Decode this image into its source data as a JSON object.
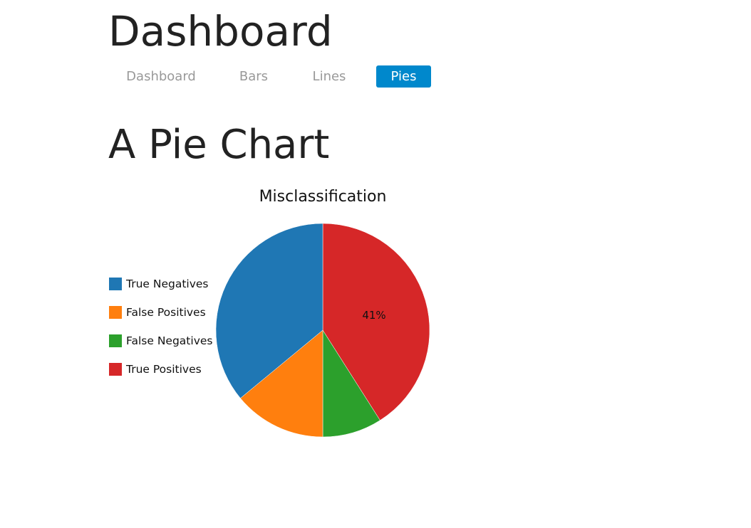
{
  "header": {
    "title": "Dashboard"
  },
  "nav": {
    "items": [
      {
        "label": "Dashboard",
        "active": false
      },
      {
        "label": "Bars",
        "active": false
      },
      {
        "label": "Lines",
        "active": false
      },
      {
        "label": "Pies",
        "active": true
      }
    ],
    "active_color": "#0088cc"
  },
  "main": {
    "section_title": "A Pie Chart"
  },
  "chart_data": {
    "type": "pie",
    "title": "Misclassification",
    "legend_position": "left",
    "categories": [
      "True Negatives",
      "False Positives",
      "False Negatives",
      "True Positives"
    ],
    "values": [
      36,
      14,
      9,
      41
    ],
    "unit": "%",
    "colors": [
      "#1f77b4",
      "#ff7f0e",
      "#2ca02c",
      "#d62728"
    ],
    "data_labels": [
      null,
      null,
      null,
      "41%"
    ]
  }
}
